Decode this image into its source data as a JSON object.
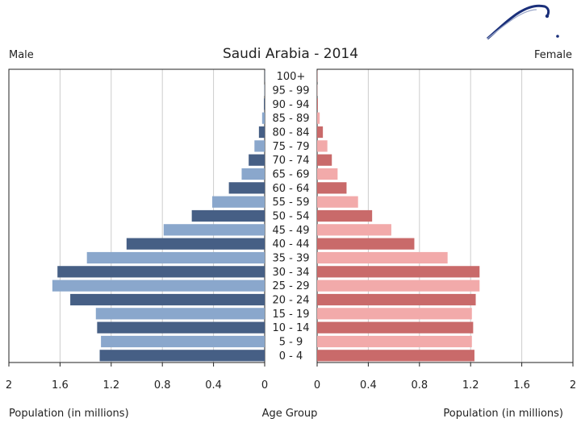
{
  "chart_data": {
    "type": "bar",
    "orientation": "horizontal-population-pyramid",
    "title": "Saudi Arabia - 2014",
    "left_label": "Male",
    "right_label": "Female",
    "left_axis_title": "Population (in millions)",
    "center_axis_title": "Age Group",
    "right_axis_title": "Population (in millions)",
    "xlim": [
      0,
      2
    ],
    "left_ticks": [
      "2",
      "1.6",
      "1.2",
      "0.8",
      "0.4",
      "0"
    ],
    "right_ticks": [
      "0",
      "0.4",
      "0.8",
      "1.2",
      "1.6",
      "2"
    ],
    "tick_values": [
      2,
      1.6,
      1.2,
      0.8,
      0.4,
      0
    ],
    "right_tick_values": [
      0,
      0.4,
      0.8,
      1.2,
      1.6,
      2
    ],
    "categories": [
      "100+",
      "95 - 99",
      "90 - 94",
      "85 - 89",
      "80 - 84",
      "75 - 79",
      "70 - 74",
      "65 - 69",
      "60 - 64",
      "55 - 59",
      "50 - 54",
      "45 - 49",
      "40 - 44",
      "35 - 39",
      "30 - 34",
      "25 - 29",
      "20 - 24",
      "15 - 19",
      "10 - 14",
      "5 - 9",
      "0 - 4"
    ],
    "series": [
      {
        "name": "Male",
        "values": [
          0.0005,
          0.002,
          0.006,
          0.02,
          0.045,
          0.08,
          0.125,
          0.18,
          0.28,
          0.41,
          0.57,
          0.79,
          1.08,
          1.39,
          1.62,
          1.66,
          1.52,
          1.32,
          1.31,
          1.28,
          1.29
        ]
      },
      {
        "name": "Female",
        "values": [
          0.0005,
          0.002,
          0.006,
          0.02,
          0.045,
          0.08,
          0.115,
          0.16,
          0.23,
          0.32,
          0.43,
          0.58,
          0.76,
          1.02,
          1.27,
          1.27,
          1.24,
          1.21,
          1.22,
          1.21,
          1.23
        ]
      }
    ],
    "colors": {
      "male_dark": "#465f85",
      "male_light": "#8aa7cc",
      "female_dark": "#c96a6a",
      "female_light": "#f2aaaa",
      "grid": "#cccccc",
      "axis": "#222222",
      "logo": "#1a2f7a"
    }
  }
}
